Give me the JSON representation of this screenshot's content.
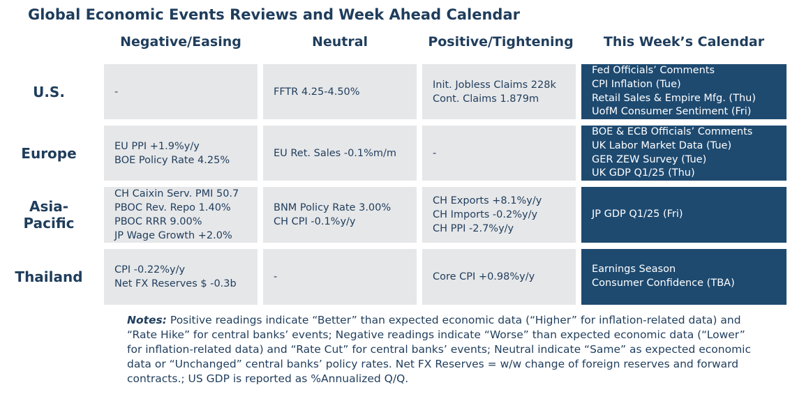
{
  "title": "Global Economic Events Reviews and Week Ahead Calendar",
  "columns": {
    "negative": "Negative/Easing",
    "neutral": "Neutral",
    "positive": "Positive/Tightening",
    "calendar": "This Week’s Calendar"
  },
  "rows": {
    "us": {
      "label": "U.S.",
      "negative": [
        "-"
      ],
      "neutral": [
        "FFTR 4.25-4.50%"
      ],
      "positive": [
        "Init. Jobless Claims 228k",
        "Cont. Claims 1.879m"
      ],
      "calendar": [
        "Fed Officials’ Comments",
        "CPI Inflation (Tue)",
        "Retail Sales & Empire Mfg. (Thu)",
        "UofM Consumer Sentiment (Fri)"
      ]
    },
    "europe": {
      "label": "Europe",
      "negative": [
        "EU PPI +1.9%y/y",
        "BOE Policy Rate 4.25%"
      ],
      "neutral": [
        "EU Ret. Sales -0.1%m/m"
      ],
      "positive": [
        "-"
      ],
      "calendar": [
        "BOE & ECB Officials’ Comments",
        "UK Labor Market Data (Tue)",
        "GER ZEW Survey (Tue)",
        "UK GDP Q1/25 (Thu)"
      ]
    },
    "asia": {
      "label_line1": "Asia-",
      "label_line2": "Pacific",
      "negative": [
        "CH Caixin Serv. PMI 50.7",
        "PBOC Rev. Repo 1.40%",
        "PBOC RRR 9.00%",
        "JP Wage Growth +2.0%"
      ],
      "neutral": [
        "BNM Policy Rate 3.00%",
        "CH CPI -0.1%y/y"
      ],
      "positive": [
        "CH Exports +8.1%y/y",
        "CH Imports -0.2%y/y",
        "CH PPI -2.7%y/y"
      ],
      "calendar": [
        "JP GDP Q1/25 (Fri)"
      ]
    },
    "thailand": {
      "label": "Thailand",
      "negative": [
        "CPI -0.22%y/y",
        "Net FX Reserves $ -0.3b"
      ],
      "neutral": [
        "-"
      ],
      "positive": [
        "Core CPI +0.98%y/y"
      ],
      "calendar": [
        "Earnings Season",
        "Consumer Confidence (TBA)"
      ]
    }
  },
  "notes": {
    "label": "Notes:",
    "text": " Positive readings indicate “Better” than expected economic data (“Higher” for inflation-related data) and “Rate Hike” for central banks’ events; Negative readings indicate “Worse” than expected economic data (“Lower” for inflation-related data) and “Rate Cut” for central banks’ events; Neutral indicate “Same” as expected economic data or “Unchanged” central banks’ policy rates. Net FX Reserves = w/w change of foreign reserves and forward contracts.; US GDP is reported as %Annualized Q/Q."
  },
  "colors": {
    "title": "#1f3d5c",
    "cell_bg": "#e6e7e9",
    "calendar_bg": "#1e4a70",
    "calendar_text": "#ffffff"
  }
}
